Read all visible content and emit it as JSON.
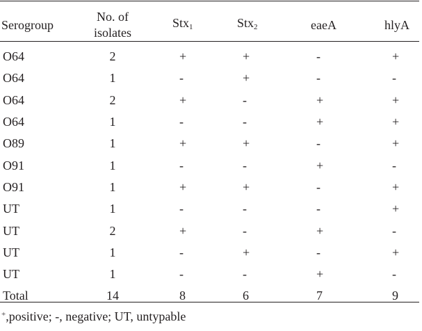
{
  "headers": {
    "serogroup": "Serogroup",
    "isolates_line1": "No. of",
    "isolates_line2": "isolates",
    "stx1_base": "Stx",
    "stx1_sub": "1",
    "stx2_base": "Stx",
    "stx2_sub": "2",
    "eaeA": "eaeA",
    "hlyA": "hlyA"
  },
  "rows": [
    {
      "serogroup": "O64",
      "isolates": "2",
      "stx1": "+",
      "stx2": "+",
      "eaeA": "-",
      "hlyA": "+"
    },
    {
      "serogroup": "O64",
      "isolates": "1",
      "stx1": "-",
      "stx2": "+",
      "eaeA": "-",
      "hlyA": "-"
    },
    {
      "serogroup": "O64",
      "isolates": "2",
      "stx1": "+",
      "stx2": "-",
      "eaeA": "+",
      "hlyA": "+"
    },
    {
      "serogroup": "O64",
      "isolates": "1",
      "stx1": "-",
      "stx2": "-",
      "eaeA": "+",
      "hlyA": "+"
    },
    {
      "serogroup": "O89",
      "isolates": "1",
      "stx1": "+",
      "stx2": "+",
      "eaeA": "-",
      "hlyA": "+"
    },
    {
      "serogroup": "O91",
      "isolates": "1",
      "stx1": "-",
      "stx2": "-",
      "eaeA": "+",
      "hlyA": "-"
    },
    {
      "serogroup": "O91",
      "isolates": "1",
      "stx1": "+",
      "stx2": "+",
      "eaeA": "-",
      "hlyA": "+"
    },
    {
      "serogroup": "UT",
      "isolates": "1",
      "stx1": "-",
      "stx2": "-",
      "eaeA": "-",
      "hlyA": "+"
    },
    {
      "serogroup": "UT",
      "isolates": "2",
      "stx1": "+",
      "stx2": "-",
      "eaeA": "+",
      "hlyA": "-"
    },
    {
      "serogroup": "UT",
      "isolates": "1",
      "stx1": "-",
      "stx2": "+",
      "eaeA": "-",
      "hlyA": "+"
    },
    {
      "serogroup": "UT",
      "isolates": "1",
      "stx1": "-",
      "stx2": "-",
      "eaeA": "+",
      "hlyA": "-"
    },
    {
      "serogroup": "Total",
      "isolates": "14",
      "stx1": "8",
      "stx2": "6",
      "eaeA": "7",
      "hlyA": "9"
    }
  ],
  "footnote": {
    "sup": "+",
    "text": ",positive; -, negative; UT, untypable"
  }
}
